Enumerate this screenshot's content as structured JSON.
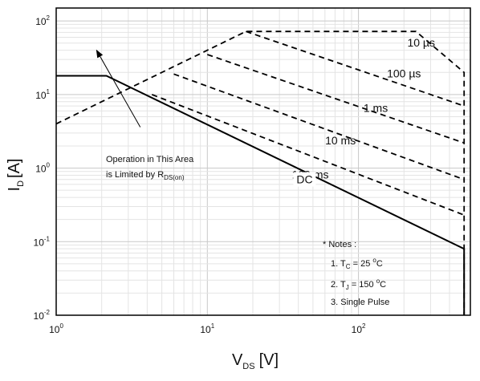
{
  "chart_data": {
    "type": "line",
    "xscale": "log",
    "yscale": "log",
    "xlim": [
      1,
      550
    ],
    "ylim": [
      0.01,
      150
    ],
    "grid": true,
    "xlabel": {
      "main": "V",
      "sub": "DS",
      "unit": "[V]"
    },
    "ylabel": {
      "main": "I",
      "sub": "D",
      "unit": "[A]"
    },
    "xticks": [
      {
        "value": 1,
        "base": "10",
        "exp": "0"
      },
      {
        "value": 10,
        "base": "10",
        "exp": "1"
      },
      {
        "value": 100,
        "base": "10",
        "exp": "2"
      }
    ],
    "yticks": [
      {
        "value": 0.01,
        "base": "10",
        "exp": "-2"
      },
      {
        "value": 0.1,
        "base": "10",
        "exp": "-1"
      },
      {
        "value": 1,
        "base": "10",
        "exp": "0"
      },
      {
        "value": 10,
        "base": "10",
        "exp": "1"
      },
      {
        "value": 100,
        "base": "10",
        "exp": "2"
      }
    ],
    "series": [
      {
        "name": "DC",
        "style": "solid",
        "x": [
          1,
          2.15,
          500,
          500
        ],
        "y": [
          18,
          18,
          0.08,
          0.01
        ]
      },
      {
        "name": "10 µs",
        "style": "dashed",
        "x": [
          1,
          18,
          240,
          500,
          500
        ],
        "y": [
          4,
          72,
          72,
          20,
          0.01
        ]
      },
      {
        "name": "100 µs",
        "style": "dashed",
        "x": [
          18,
          500
        ],
        "y": [
          72,
          7
        ]
      },
      {
        "name": "1 ms",
        "style": "dashed",
        "x": [
          10,
          500
        ],
        "y": [
          35,
          2.2
        ]
      },
      {
        "name": "10 ms",
        "style": "dashed",
        "x": [
          6,
          500
        ],
        "y": [
          19,
          0.7
        ]
      },
      {
        "name": "100 ms",
        "style": "dashed",
        "x": [
          4.3,
          500
        ],
        "y": [
          10,
          0.23
        ]
      }
    ],
    "curve_labels": [
      {
        "text": "10 µs",
        "x": 260,
        "y": 45
      },
      {
        "text": "100 µs",
        "x": 200,
        "y": 17
      },
      {
        "text": "1 ms",
        "x": 130,
        "y": 5.8
      },
      {
        "text": "10 ms",
        "x": 76,
        "y": 2.1
      },
      {
        "text": "100 ms",
        "x": 48,
        "y": 0.72
      },
      {
        "text": "DC",
        "x": 44,
        "y": 0.62
      }
    ],
    "annotation": {
      "lines": [
        "Operation in This Area",
        "is Limited by R"
      ],
      "sub": "DS(on)",
      "arrow_from": {
        "x": 3.6,
        "y": 3.6
      },
      "arrow_to": {
        "x": 1.85,
        "y": 40
      }
    },
    "notes": {
      "title": "* Notes :",
      "items": [
        {
          "prefix": "1. T",
          "sub": "C",
          "value": " = 25 ",
          "sup": "o",
          "unit": "C"
        },
        {
          "prefix": "2. T",
          "sub": "J",
          "value": " = 150 ",
          "sup": "o",
          "unit": "C"
        },
        {
          "prefix": "3. Single Pulse",
          "sub": "",
          "value": "",
          "sup": "",
          "unit": ""
        }
      ]
    }
  }
}
